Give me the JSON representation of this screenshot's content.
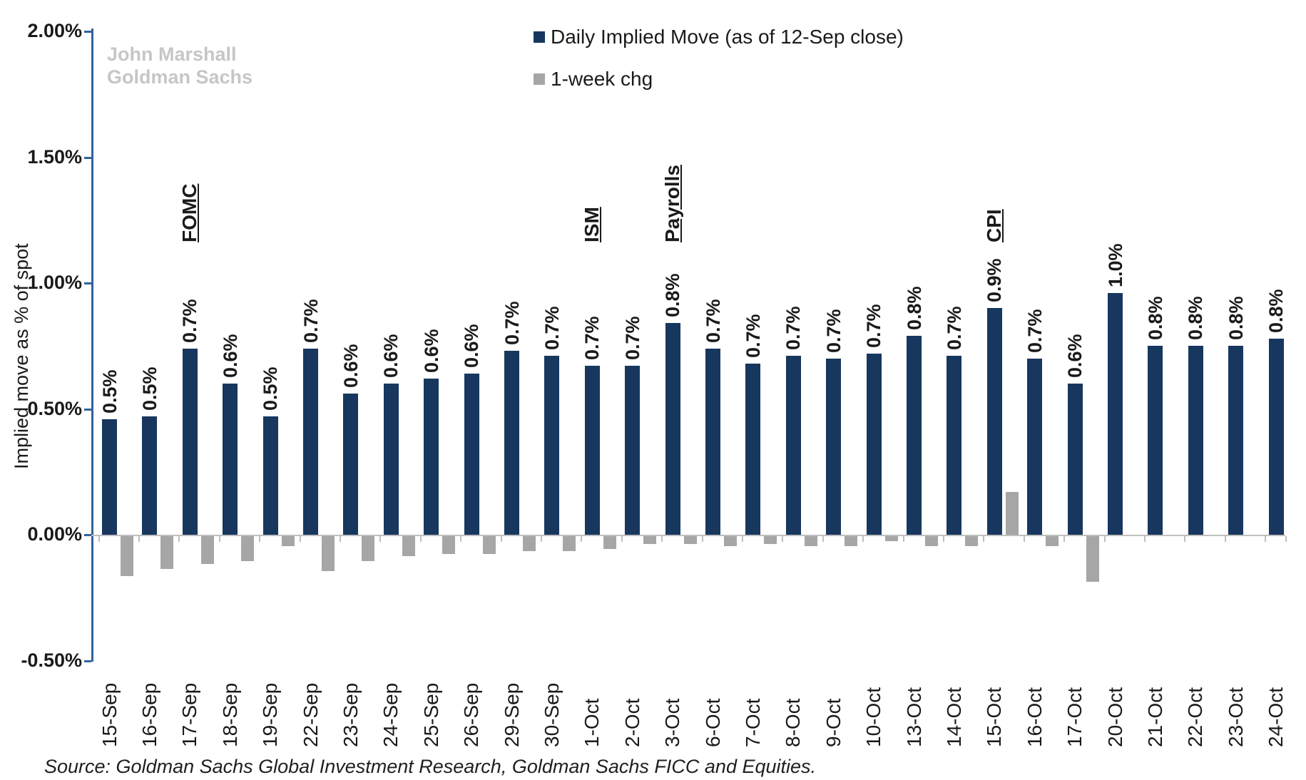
{
  "watermark": {
    "line1": "John Marshall",
    "line2": "Goldman Sachs"
  },
  "legend": {
    "items": [
      {
        "label": "Daily Implied Move (as of 12-Sep close)",
        "color": "#17375e"
      },
      {
        "label": "1-week chg",
        "color": "#a6a6a6"
      }
    ]
  },
  "y_axis": {
    "title": "Implied move as % of spot",
    "tick_labels": [
      "2.00%",
      "1.50%",
      "1.00%",
      "0.50%",
      "0.00%",
      "-0.50%"
    ],
    "tick_values": [
      2.0,
      1.5,
      1.0,
      0.5,
      0.0,
      -0.5
    ]
  },
  "source": "Source: Goldman Sachs Global Investment Research, Goldman Sachs FICC and Equities.",
  "chart_data": {
    "type": "bar",
    "title": "",
    "xlabel": "",
    "ylabel": "Implied move as % of spot",
    "ylim": [
      -0.5,
      2.0
    ],
    "grid": false,
    "legend_position": "top-center",
    "categories": [
      "15-Sep",
      "16-Sep",
      "17-Sep",
      "18-Sep",
      "19-Sep",
      "22-Sep",
      "23-Sep",
      "24-Sep",
      "25-Sep",
      "26-Sep",
      "29-Sep",
      "30-Sep",
      "1-Oct",
      "2-Oct",
      "3-Oct",
      "6-Oct",
      "7-Oct",
      "8-Oct",
      "9-Oct",
      "10-Oct",
      "13-Oct",
      "14-Oct",
      "15-Oct",
      "16-Oct",
      "17-Oct",
      "20-Oct",
      "21-Oct",
      "22-Oct",
      "23-Oct",
      "24-Oct"
    ],
    "series": [
      {
        "name": "Daily Implied Move (as of 12-Sep close)",
        "color": "#17375e",
        "values": [
          0.46,
          0.47,
          0.74,
          0.6,
          0.47,
          0.74,
          0.56,
          0.6,
          0.62,
          0.64,
          0.73,
          0.71,
          0.67,
          0.67,
          0.84,
          0.74,
          0.68,
          0.71,
          0.7,
          0.72,
          0.79,
          0.71,
          0.9,
          0.7,
          0.6,
          0.96,
          0.75,
          0.75,
          0.75,
          0.78
        ],
        "labels": [
          "0.5%",
          "0.5%",
          "0.7%",
          "0.6%",
          "0.5%",
          "0.7%",
          "0.6%",
          "0.6%",
          "0.6%",
          "0.6%",
          "0.7%",
          "0.7%",
          "0.7%",
          "0.7%",
          "0.8%",
          "0.7%",
          "0.7%",
          "0.7%",
          "0.7%",
          "0.7%",
          "0.8%",
          "0.7%",
          "0.9%",
          "0.7%",
          "0.6%",
          "1.0%",
          "0.8%",
          "0.8%",
          "0.8%",
          "0.8%"
        ]
      },
      {
        "name": "1-week chg",
        "color": "#a6a6a6",
        "values": [
          -0.16,
          -0.13,
          -0.11,
          -0.1,
          -0.04,
          -0.14,
          -0.1,
          -0.08,
          -0.07,
          -0.07,
          -0.06,
          -0.06,
          -0.05,
          -0.03,
          -0.03,
          -0.04,
          -0.03,
          -0.04,
          -0.04,
          -0.02,
          -0.04,
          -0.04,
          0.17,
          -0.04,
          -0.18,
          0.0,
          0.0,
          0.0,
          0.0,
          0.0
        ]
      }
    ],
    "annotations": [
      {
        "category": "17-Sep",
        "text": "FOMC"
      },
      {
        "category": "1-Oct",
        "text": "ISM"
      },
      {
        "category": "3-Oct",
        "text": "Payrolls"
      },
      {
        "category": "15-Oct",
        "text": "CPI"
      }
    ]
  }
}
